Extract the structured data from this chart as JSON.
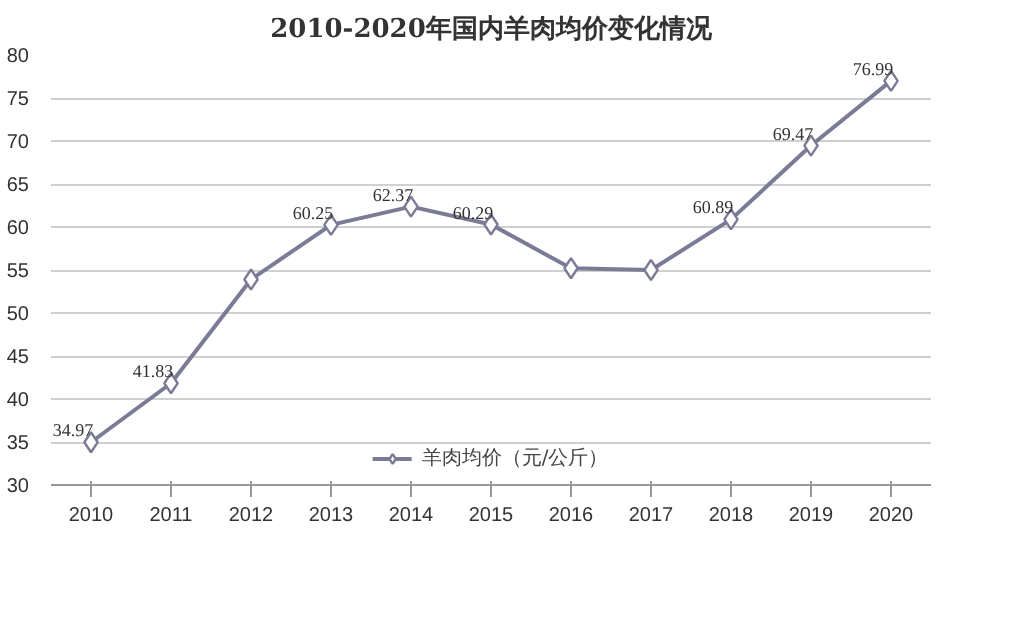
{
  "chart_data": {
    "type": "line",
    "title": "2010-2020年国内羊肉均价变化情况",
    "categories": [
      "2010",
      "2011",
      "2012",
      "2013",
      "2014",
      "2015",
      "2016",
      "2017",
      "2018",
      "2019",
      "2020"
    ],
    "series": [
      {
        "name": "羊肉均价（元/公斤）",
        "color": "#7b7b96",
        "values": [
          34.97,
          41.83,
          53.9,
          60.25,
          62.37,
          60.29,
          55.2,
          55.0,
          60.89,
          69.47,
          76.99
        ],
        "value_labels": [
          "34.97",
          "41.83",
          null,
          "60.25",
          "62.37",
          "60.29",
          null,
          null,
          "60.89",
          "69.47",
          "76.99"
        ]
      }
    ],
    "ylim": [
      30,
      80
    ],
    "yticks": [
      30,
      35,
      40,
      45,
      50,
      55,
      60,
      65,
      70,
      75,
      80
    ],
    "grid": "y",
    "legend": "bottom",
    "marker": "diamond",
    "line_style": "solid"
  }
}
